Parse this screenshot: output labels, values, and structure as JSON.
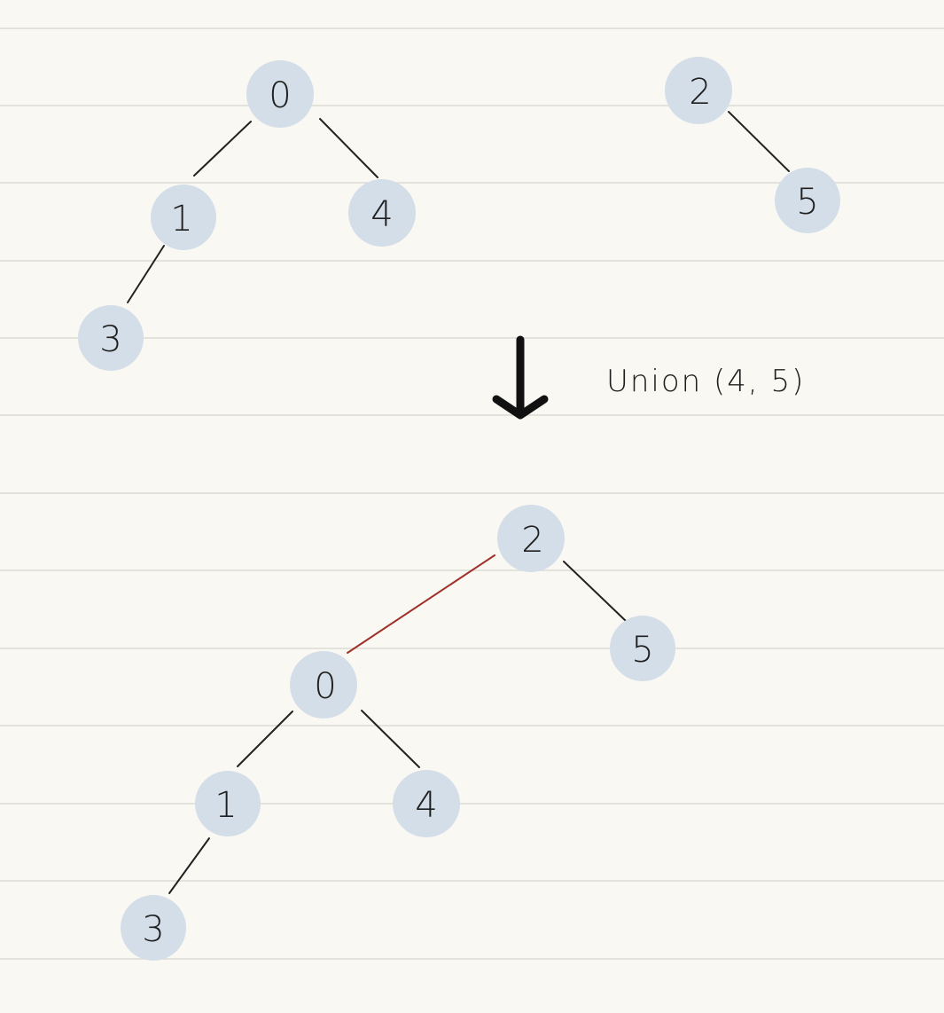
{
  "colors": {
    "paper": "#faf8f3",
    "rule_line": "#dcdad5",
    "node_fill": "#d4dee8",
    "edge": "#222222",
    "new_edge": "#a0302a",
    "text": "#1f1f1f"
  },
  "diagram": {
    "before": {
      "nodes": [
        "0",
        "1",
        "4",
        "3",
        "2",
        "5"
      ]
    },
    "operation": {
      "label": "Union (4, 5)",
      "arrow_icon": "down-arrow-icon"
    },
    "after": {
      "nodes": [
        "2",
        "5",
        "0",
        "1",
        "4",
        "3"
      ]
    }
  }
}
